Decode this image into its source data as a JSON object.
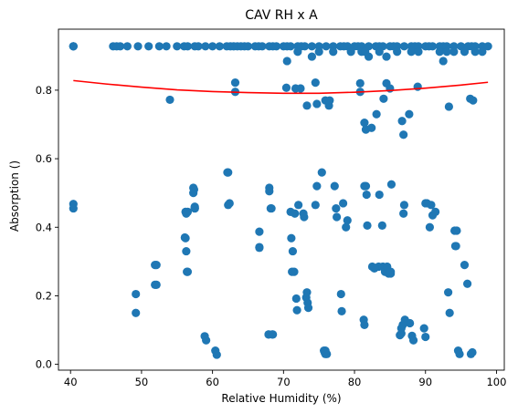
{
  "chart_data": {
    "type": "scatter",
    "title": "CAV RH x A",
    "xlabel": "Relative Humidity (%)",
    "ylabel": "Absorption ()",
    "xlim": [
      38.3,
      101.1
    ],
    "ylim": [
      -0.017,
      0.978
    ],
    "xticks": [
      40,
      50,
      60,
      70,
      80,
      90,
      100
    ],
    "yticks": [
      0.0,
      0.2,
      0.4,
      0.6,
      0.8
    ],
    "grid": false,
    "colors": {
      "points": "#1f77b4",
      "fit": "#ff0000"
    },
    "series": [
      {
        "kind": "points",
        "x": [
          40.4,
          40.4,
          40.4,
          46,
          46.5,
          47,
          48,
          49.5,
          51,
          52.5,
          53.5,
          55,
          56,
          56.5,
          57.5,
          58,
          59,
          60,
          61,
          62,
          62.5,
          63,
          63.5,
          64,
          64.5,
          65,
          66,
          66.5,
          67,
          68,
          68.5,
          69,
          70,
          70.5,
          71,
          72,
          72.5,
          73,
          74,
          75,
          76,
          77,
          78,
          78.5,
          79,
          80,
          80.5,
          81,
          82,
          83,
          83.5,
          84,
          85,
          85.5,
          86,
          87,
          88,
          88.5,
          89,
          90,
          90.5,
          91,
          92,
          92.5,
          93,
          94,
          95,
          96,
          96.5,
          97,
          98,
          98.8,
          70.5,
          72,
          74,
          75,
          77,
          79.5,
          81,
          81.5,
          82,
          83.5,
          84.5,
          86,
          88,
          89,
          92,
          92.5,
          93,
          94,
          95.5,
          97,
          98,
          54,
          63.2,
          63.2,
          70.4,
          71.7,
          72.4,
          73.3,
          74.5,
          74.7,
          75.9,
          76.4,
          76.5,
          80.8,
          80.8,
          81.4,
          81.6,
          82.4,
          83.1,
          84.1,
          84.5,
          85,
          86.7,
          86.9,
          87.7,
          88.9,
          93.3,
          96.3,
          96.7,
          40.4,
          40.4,
          49.2,
          49.2,
          51.9,
          51.9,
          52.1,
          52.1,
          56.2,
          56.2,
          56.3,
          56.4,
          56.5,
          56.5,
          57.3,
          57.4,
          57.5,
          57.5,
          58.9,
          59.1,
          60.4,
          60.6,
          62.2,
          62.2,
          66.6,
          66.6,
          67.9,
          67.9,
          68,
          68,
          68.2,
          68.3,
          68.4,
          68.5,
          71,
          71.1,
          71.3,
          71.5,
          71.6,
          71.8,
          71.9,
          72.1,
          72.8,
          72.9,
          73.2,
          73.3,
          73.4,
          73.5,
          74.5,
          74.7,
          75.4,
          75.7,
          75.9,
          76.1,
          77.2,
          77.4,
          77.5,
          78.1,
          78.2,
          78.4,
          78.8,
          79,
          81.3,
          81.4,
          81.6,
          81.7,
          81.8,
          82.5,
          83.4,
          83.5,
          83.9,
          84,
          84.3,
          84.6,
          84.8,
          85.1,
          85.2,
          86.4,
          86.6,
          86.8,
          86.9,
          87,
          87.1,
          87.8,
          88.1,
          88.3,
          89.8,
          90,
          90.2,
          90.6,
          90.8,
          91,
          91.4,
          93.2,
          93.4,
          94.1,
          94.2,
          94.3,
          94.6,
          94.8,
          95.5,
          95.9,
          96.4,
          96.6,
          56.1,
          56.3,
          57.3,
          57.5,
          62.1,
          62.4,
          66.6,
          71.2,
          75.8,
          75.9,
          81.4,
          82.8,
          85.1,
          86.6,
          90,
          94.4
        ],
        "y": [
          0.928,
          0.928,
          0.928,
          0.928,
          0.928,
          0.928,
          0.928,
          0.928,
          0.928,
          0.928,
          0.928,
          0.928,
          0.928,
          0.928,
          0.928,
          0.928,
          0.928,
          0.928,
          0.928,
          0.928,
          0.928,
          0.928,
          0.928,
          0.928,
          0.928,
          0.928,
          0.928,
          0.928,
          0.928,
          0.928,
          0.928,
          0.928,
          0.928,
          0.928,
          0.928,
          0.928,
          0.928,
          0.928,
          0.928,
          0.928,
          0.928,
          0.928,
          0.928,
          0.928,
          0.928,
          0.928,
          0.928,
          0.928,
          0.928,
          0.928,
          0.928,
          0.928,
          0.928,
          0.928,
          0.928,
          0.928,
          0.928,
          0.928,
          0.928,
          0.928,
          0.928,
          0.928,
          0.928,
          0.928,
          0.928,
          0.928,
          0.928,
          0.928,
          0.928,
          0.928,
          0.928,
          0.928,
          0.885,
          0.912,
          0.898,
          0.912,
          0.912,
          0.912,
          0.912,
          0.912,
          0.898,
          0.912,
          0.898,
          0.912,
          0.912,
          0.912,
          0.912,
          0.885,
          0.912,
          0.912,
          0.912,
          0.912,
          0.912,
          0.772,
          0.822,
          0.795,
          0.807,
          0.805,
          0.805,
          0.755,
          0.822,
          0.76,
          0.77,
          0.755,
          0.77,
          0.82,
          0.795,
          0.705,
          0.685,
          0.69,
          0.73,
          0.775,
          0.82,
          0.805,
          0.71,
          0.67,
          0.73,
          0.81,
          0.752,
          0.775,
          0.77,
          0.468,
          0.455,
          0.205,
          0.15,
          0.29,
          0.232,
          0.29,
          0.232,
          0.445,
          0.368,
          0.33,
          0.27,
          0.27,
          0.445,
          0.515,
          0.51,
          0.455,
          0.455,
          0.082,
          0.07,
          0.04,
          0.028,
          0.56,
          0.465,
          0.387,
          0.342,
          0.087,
          0.087,
          0.515,
          0.505,
          0.455,
          0.455,
          0.087,
          0.087,
          0.445,
          0.368,
          0.33,
          0.27,
          0.44,
          0.192,
          0.158,
          0.465,
          0.44,
          0.43,
          0.195,
          0.21,
          0.18,
          0.165,
          0.465,
          0.52,
          0.56,
          0.04,
          0.03,
          0.03,
          0.52,
          0.455,
          0.43,
          0.205,
          0.155,
          0.47,
          0.4,
          0.42,
          0.13,
          0.115,
          0.52,
          0.495,
          0.405,
          0.285,
          0.285,
          0.495,
          0.405,
          0.285,
          0.27,
          0.285,
          0.265,
          0.265,
          0.525,
          0.085,
          0.105,
          0.115,
          0.44,
          0.465,
          0.13,
          0.12,
          0.083,
          0.07,
          0.105,
          0.08,
          0.47,
          0.4,
          0.465,
          0.435,
          0.445,
          0.21,
          0.15,
          0.39,
          0.345,
          0.345,
          0.04,
          0.03,
          0.29,
          0.235,
          0.03,
          0.035,
          0.37,
          0.44,
          0.5,
          0.46,
          0.56,
          0.47,
          0.34,
          0.27,
          0.035,
          0.04,
          0.52,
          0.28,
          0.27,
          0.09,
          0.47,
          0.39
        ]
      },
      {
        "kind": "fit",
        "x": [
          40.4,
          45,
          50,
          55,
          60,
          65,
          70,
          75,
          80,
          85,
          90,
          95,
          98.8
        ],
        "y": [
          0.828,
          0.818,
          0.809,
          0.801,
          0.796,
          0.793,
          0.791,
          0.791,
          0.794,
          0.799,
          0.806,
          0.815,
          0.823
        ]
      }
    ]
  }
}
